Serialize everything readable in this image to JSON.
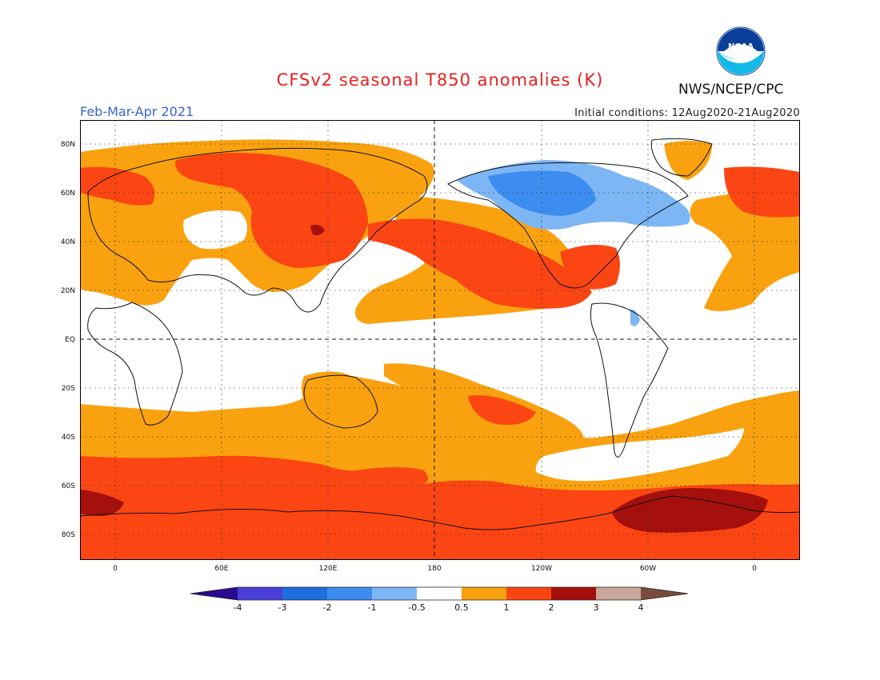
{
  "title": "CFSv2 seasonal T850 anomalies (K)",
  "org": "NWS/NCEP/CPC",
  "logo_text": "NOAA",
  "period": "Feb-Mar-Apr 2021",
  "initial_conditions": "Initial conditions: 12Aug2020-21Aug2020",
  "lat_labels": [
    "80N",
    "60N",
    "40N",
    "20N",
    "EQ",
    "20S",
    "40S",
    "60S",
    "80S"
  ],
  "lon_labels": [
    "0",
    "60E",
    "120E",
    "180",
    "120W",
    "60W",
    "0"
  ],
  "colorbar": {
    "labels": [
      "-4",
      "-3",
      "-2",
      "-1",
      "-0.5",
      "0.5",
      "1",
      "2",
      "3",
      "4"
    ],
    "colors": [
      "#2a0a8e",
      "#4a3fd6",
      "#1f6ee0",
      "#3d8df0",
      "#7db6f4",
      "#ffffff",
      "#f9a10f",
      "#fb4512",
      "#a5100c",
      "#c9a79b",
      "#7b4a3d"
    ]
  }
}
